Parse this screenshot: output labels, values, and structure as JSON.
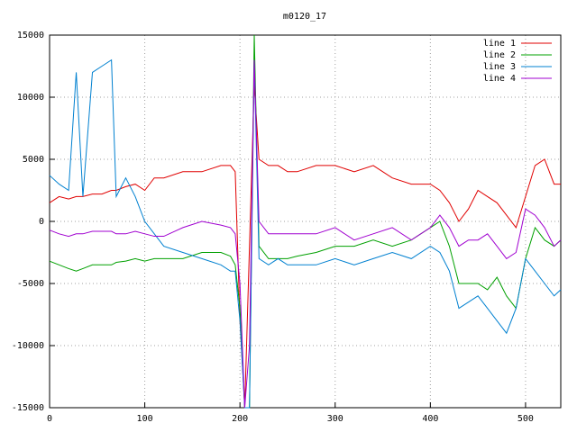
{
  "chart_data": {
    "type": "line",
    "title": "m0120_17",
    "x": [
      0,
      10,
      20,
      28,
      35,
      45,
      55,
      65,
      70,
      80,
      90,
      100,
      110,
      120,
      140,
      160,
      180,
      190,
      195,
      200,
      205,
      210,
      215,
      220,
      230,
      240,
      250,
      260,
      280,
      300,
      320,
      340,
      360,
      380,
      400,
      410,
      420,
      430,
      440,
      450,
      460,
      470,
      480,
      490,
      500,
      510,
      520,
      530,
      537
    ],
    "series": [
      {
        "name": "line 1",
        "color": "#e00000",
        "values": [
          1500,
          2000,
          1800,
          2000,
          2000,
          2200,
          2200,
          2500,
          2500,
          2800,
          3000,
          2500,
          3500,
          3500,
          4000,
          4000,
          4500,
          4500,
          4000,
          -8000,
          -15000,
          -2000,
          11000,
          5000,
          4500,
          4500,
          4000,
          4000,
          4500,
          4500,
          4000,
          4500,
          3500,
          3000,
          3000,
          2500,
          1500,
          0,
          1000,
          2500,
          2000,
          1500,
          500,
          -500,
          2000,
          4500,
          5000,
          3000,
          3000
        ]
      },
      {
        "name": "line 2",
        "color": "#00a000",
        "values": [
          -3200,
          -3500,
          -3800,
          -4000,
          -3800,
          -3500,
          -3500,
          -3500,
          -3300,
          -3200,
          -3000,
          -3200,
          -3000,
          -3000,
          -3000,
          -2500,
          -2500,
          -2800,
          -3500,
          -7000,
          -15000,
          -15000,
          15000,
          -2000,
          -3000,
          -3000,
          -3000,
          -2800,
          -2500,
          -2000,
          -2000,
          -1500,
          -2000,
          -1500,
          -500,
          0,
          -2000,
          -5000,
          -5000,
          -5000,
          -5500,
          -4500,
          -6000,
          -7000,
          -3000,
          -500,
          -1500,
          -2000,
          -1500
        ]
      },
      {
        "name": "line 3",
        "color": "#0080d0",
        "values": [
          3700,
          3000,
          2500,
          12000,
          2000,
          12000,
          12500,
          13000,
          2000,
          3500,
          2000,
          0,
          -1000,
          -2000,
          -2500,
          -3000,
          -3500,
          -4000,
          -4000,
          -8000,
          -15000,
          -15000,
          13000,
          -3000,
          -3500,
          -3000,
          -3500,
          -3500,
          -3500,
          -3000,
          -3500,
          -3000,
          -2500,
          -3000,
          -2000,
          -2500,
          -4000,
          -7000,
          -6500,
          -6000,
          -7000,
          -8000,
          -9000,
          -7000,
          -3000,
          -4000,
          -5000,
          -6000,
          -5500
        ]
      },
      {
        "name": "line 4",
        "color": "#a000d0",
        "values": [
          -700,
          -1000,
          -1200,
          -1000,
          -1000,
          -800,
          -800,
          -800,
          -1000,
          -1000,
          -800,
          -1000,
          -1200,
          -1200,
          -500,
          0,
          -300,
          -500,
          -1000,
          -5000,
          -15000,
          -10000,
          13000,
          0,
          -1000,
          -1000,
          -1000,
          -1000,
          -1000,
          -500,
          -1500,
          -1000,
          -500,
          -1500,
          -500,
          500,
          -500,
          -2000,
          -1500,
          -1500,
          -1000,
          -2000,
          -3000,
          -2500,
          1000,
          500,
          -500,
          -2000,
          -1500
        ]
      }
    ],
    "xlim": [
      0,
      537
    ],
    "xticks": [
      0,
      100,
      200,
      300,
      400,
      500
    ],
    "ylim": [
      -15000,
      15000
    ],
    "yticks": [
      -15000,
      -10000,
      -5000,
      0,
      5000,
      10000,
      15000
    ],
    "grid": true,
    "legend": "top-right"
  }
}
